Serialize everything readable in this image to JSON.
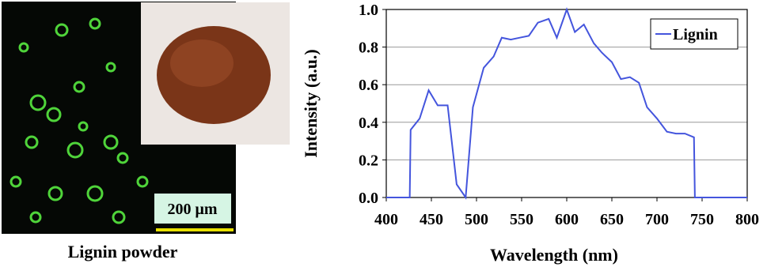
{
  "figure_panel": {
    "caption": "Lignin powder",
    "scale_bar": "200 μm"
  },
  "chart_data": {
    "type": "line",
    "x_label": "Wavelength (nm)",
    "y_label": "Intensity (a.u.)",
    "xlim": [
      400,
      800
    ],
    "xticks": [
      400,
      450,
      500,
      550,
      600,
      650,
      700,
      750,
      800
    ],
    "ylim": [
      0,
      1
    ],
    "yticks": [
      {
        "value": 0,
        "label": "0.0"
      },
      {
        "value": 0.2,
        "label": "0.2"
      },
      {
        "value": 0.4,
        "label": "0.4"
      },
      {
        "value": 0.6,
        "label": "0.6"
      },
      {
        "value": 0.8,
        "label": "0.8"
      },
      {
        "value": 1,
        "label": "1.0"
      }
    ],
    "grid": true,
    "legend": "upper right",
    "x": [
      400,
      426,
      427,
      437,
      447,
      457,
      468,
      478,
      488,
      496,
      508,
      519,
      528,
      538,
      548,
      558,
      568,
      580,
      589,
      600,
      609,
      619,
      630,
      639,
      650,
      660,
      670,
      680,
      689,
      700,
      711,
      721,
      731,
      741,
      742,
      800
    ],
    "series": [
      {
        "name": "Lignin",
        "color": "#4455dd",
        "values": [
          0,
          0,
          0.36,
          0.42,
          0.57,
          0.49,
          0.49,
          0.07,
          0,
          0.48,
          0.69,
          0.75,
          0.85,
          0.84,
          0.85,
          0.86,
          0.93,
          0.95,
          0.85,
          1.0,
          0.88,
          0.92,
          0.82,
          0.77,
          0.72,
          0.63,
          0.64,
          0.61,
          0.48,
          0.42,
          0.35,
          0.34,
          0.34,
          0.32,
          0,
          0
        ]
      }
    ]
  }
}
